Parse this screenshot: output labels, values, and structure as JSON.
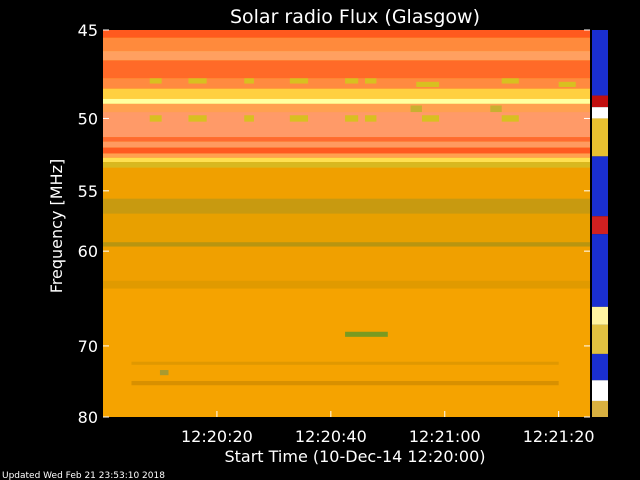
{
  "chart_data": {
    "type": "heatmap",
    "title": "Solar radio Flux (Glasgow)",
    "xlabel": "Start Time (10-Dec-14 12:20:00)",
    "ylabel": "Frequency [MHz]",
    "x_ticks": [
      "12:20:20",
      "12:20:40",
      "12:21:00",
      "12:21:20"
    ],
    "x_tick_seconds": [
      20,
      40,
      60,
      80
    ],
    "xlim_seconds": [
      0,
      85.5
    ],
    "y_ticks": [
      45,
      50,
      55,
      60,
      70,
      80
    ],
    "ylim": [
      45,
      80
    ],
    "y_scale": "reciprocal",
    "colors": {
      "background": "#000000",
      "orange": "#f5a300",
      "red_orange": "#ff5a1e",
      "yellow": "#ffe060",
      "olive": "#b89a18",
      "green": "#7a9a20",
      "colorbar_blue": "#1a2fd0"
    },
    "bands": [
      {
        "f1": 45.4,
        "f2": 46.1,
        "tone": "#ff8a3c"
      },
      {
        "f1": 46.1,
        "f2": 46.6,
        "tone": "#ffa060"
      },
      {
        "f1": 46.6,
        "f2": 47.6,
        "tone": "#ff6a28"
      },
      {
        "f1": 47.6,
        "f2": 48.2,
        "tone": "#ff8a40"
      },
      {
        "f1": 48.2,
        "f2": 48.8,
        "tone": "#ffd040"
      },
      {
        "f1": 48.8,
        "f2": 49.1,
        "tone": "#ffffa0"
      },
      {
        "f1": 49.1,
        "f2": 49.6,
        "tone": "#ffa050"
      },
      {
        "f1": 49.6,
        "f2": 51.2,
        "tone": "#ff9a68"
      },
      {
        "f1": 51.2,
        "f2": 51.5,
        "tone": "#ff6a30"
      },
      {
        "f1": 51.5,
        "f2": 51.9,
        "tone": "#ff9a60"
      },
      {
        "f1": 51.9,
        "f2": 52.3,
        "tone": "#ff5a20"
      },
      {
        "f1": 52.3,
        "f2": 52.6,
        "tone": "#ffa050"
      },
      {
        "f1": 52.6,
        "f2": 52.9,
        "tone": "#ffe050"
      },
      {
        "f1": 52.9,
        "f2": 53.3,
        "tone": "#d8b820"
      },
      {
        "f1": 53.3,
        "f2": 55.6,
        "tone": "#f0a000"
      },
      {
        "f1": 55.6,
        "f2": 56.8,
        "tone": "#c89a10"
      },
      {
        "f1": 56.8,
        "f2": 59.2,
        "tone": "#e8a000"
      },
      {
        "f1": 59.2,
        "f2": 59.6,
        "tone": "#b89510"
      },
      {
        "f1": 59.6,
        "f2": 62.8,
        "tone": "#f0a000"
      },
      {
        "f1": 62.8,
        "f2": 63.6,
        "tone": "#e09a00"
      },
      {
        "f1": 63.6,
        "f2": 80.0,
        "tone": "#f5a300"
      }
    ],
    "features": [
      {
        "t1": 8.2,
        "t2": 10.3,
        "f1": 47.6,
        "f2": 47.9,
        "tone": "#d8c020"
      },
      {
        "t1": 15.0,
        "t2": 18.2,
        "f1": 47.6,
        "f2": 47.9,
        "tone": "#d8c020"
      },
      {
        "t1": 24.8,
        "t2": 26.5,
        "f1": 47.6,
        "f2": 47.9,
        "tone": "#d8c020"
      },
      {
        "t1": 32.8,
        "t2": 36.0,
        "f1": 47.6,
        "f2": 47.9,
        "tone": "#d8c020"
      },
      {
        "t1": 42.5,
        "t2": 44.8,
        "f1": 47.6,
        "f2": 47.9,
        "tone": "#d8c020"
      },
      {
        "t1": 46.0,
        "t2": 48.0,
        "f1": 47.6,
        "f2": 47.9,
        "tone": "#d8c020"
      },
      {
        "t1": 55.0,
        "t2": 59.0,
        "f1": 47.8,
        "f2": 48.1,
        "tone": "#d8c020"
      },
      {
        "t1": 70.0,
        "t2": 73.0,
        "f1": 47.6,
        "f2": 47.9,
        "tone": "#d8c020"
      },
      {
        "t1": 80.0,
        "t2": 83.0,
        "f1": 47.8,
        "f2": 48.1,
        "tone": "#d8c020"
      },
      {
        "t1": 8.2,
        "t2": 10.3,
        "f1": 49.8,
        "f2": 50.2,
        "tone": "#d8c020"
      },
      {
        "t1": 15.0,
        "t2": 18.2,
        "f1": 49.8,
        "f2": 50.2,
        "tone": "#d8c020"
      },
      {
        "t1": 24.8,
        "t2": 26.5,
        "f1": 49.8,
        "f2": 50.2,
        "tone": "#d8c020"
      },
      {
        "t1": 32.8,
        "t2": 36.0,
        "f1": 49.8,
        "f2": 50.2,
        "tone": "#d8c020"
      },
      {
        "t1": 42.5,
        "t2": 44.8,
        "f1": 49.8,
        "f2": 50.2,
        "tone": "#d8c020"
      },
      {
        "t1": 46.0,
        "t2": 48.0,
        "f1": 49.8,
        "f2": 50.2,
        "tone": "#d8c020"
      },
      {
        "t1": 56.0,
        "t2": 59.0,
        "f1": 49.8,
        "f2": 50.2,
        "tone": "#d8c020"
      },
      {
        "t1": 70.0,
        "t2": 73.0,
        "f1": 49.8,
        "f2": 50.2,
        "tone": "#d8c020"
      },
      {
        "t1": 54.0,
        "t2": 56.0,
        "f1": 49.2,
        "f2": 49.6,
        "tone": "#c8b030"
      },
      {
        "t1": 68.0,
        "t2": 70.0,
        "f1": 49.2,
        "f2": 49.6,
        "tone": "#c8b030"
      },
      {
        "t1": 42.5,
        "t2": 50.0,
        "f1": 68.3,
        "f2": 68.9,
        "tone": "#7a9a20"
      },
      {
        "t1": 5.0,
        "t2": 80.0,
        "f1": 74.6,
        "f2": 75.2,
        "tone": "#d89000"
      },
      {
        "t1": 5.0,
        "t2": 80.0,
        "f1": 72.0,
        "f2": 72.4,
        "tone": "#e09800"
      },
      {
        "t1": 10.0,
        "t2": 11.5,
        "f1": 73.1,
        "f2": 73.8,
        "tone": "#a89a30"
      }
    ],
    "colorbar_segments": [
      {
        "f1": 45.0,
        "f2": 48.6,
        "tone": "#1a2fd0"
      },
      {
        "f1": 48.6,
        "f2": 49.3,
        "tone": "#c01010"
      },
      {
        "f1": 49.3,
        "f2": 50.0,
        "tone": "#ffffff"
      },
      {
        "f1": 50.0,
        "f2": 52.5,
        "tone": "#e8c030"
      },
      {
        "f1": 52.5,
        "f2": 57.0,
        "tone": "#1a2fd0"
      },
      {
        "f1": 57.0,
        "f2": 58.5,
        "tone": "#d02020"
      },
      {
        "f1": 58.5,
        "f2": 65.5,
        "tone": "#1a2fd0"
      },
      {
        "f1": 65.5,
        "f2": 67.5,
        "tone": "#fff4a0"
      },
      {
        "f1": 67.5,
        "f2": 71.0,
        "tone": "#e0c040"
      },
      {
        "f1": 71.0,
        "f2": 74.5,
        "tone": "#1a2fd0"
      },
      {
        "f1": 74.5,
        "f2": 77.5,
        "tone": "#ffffff"
      },
      {
        "f1": 77.5,
        "f2": 80.0,
        "tone": "#d8b040"
      }
    ]
  },
  "footer": {
    "updated": "Updated Wed Feb 21 23:53:10 2018"
  }
}
